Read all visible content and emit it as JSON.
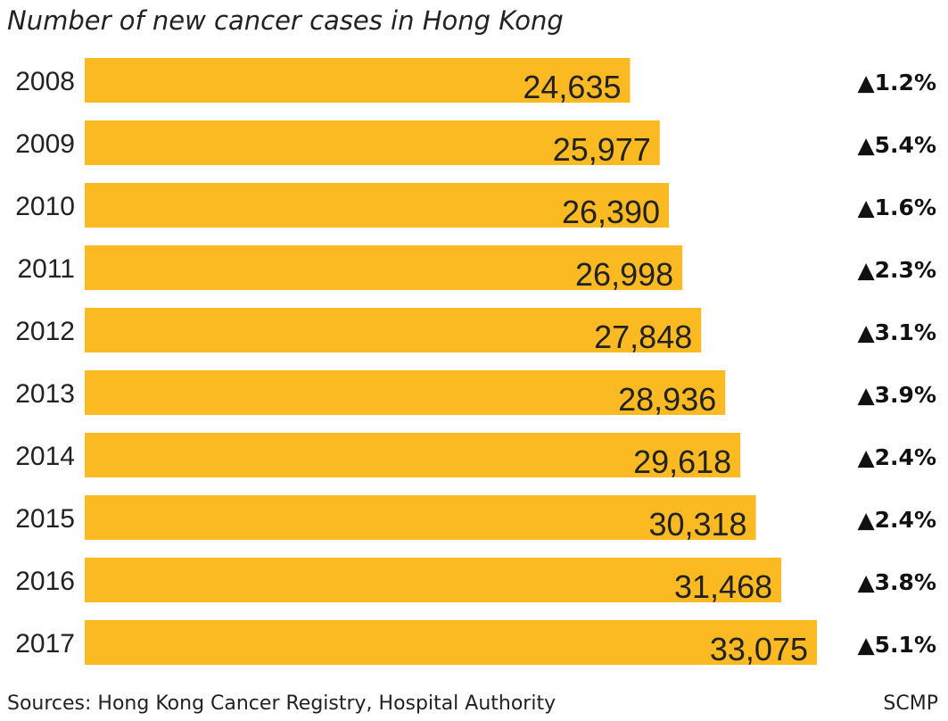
{
  "chart_data": {
    "type": "bar",
    "orientation": "horizontal",
    "title": "Number of new cancer cases in Hong Kong",
    "categories": [
      "2008",
      "2009",
      "2010",
      "2011",
      "2012",
      "2013",
      "2014",
      "2015",
      "2016",
      "2017"
    ],
    "values": [
      24635,
      25977,
      26390,
      26998,
      27848,
      28936,
      29618,
      30318,
      31468,
      33075
    ],
    "value_labels": [
      "24,635",
      "25,977",
      "26,390",
      "26,998",
      "27,848",
      "28,936",
      "29,618",
      "30,318",
      "31,468",
      "33,075"
    ],
    "change_labels": [
      "▲1.2%",
      "▲5.4%",
      "▲1.6%",
      "▲2.3%",
      "▲3.1%",
      "▲3.9%",
      "▲2.4%",
      "▲2.4%",
      "▲3.8%",
      "▲5.1%"
    ],
    "xlim": [
      0,
      33075
    ],
    "grid": false,
    "bar_color": "#FBBA22",
    "source": "Sources: Hong Kong Cancer Registry, Hospital Authority",
    "credit": "SCMP"
  }
}
